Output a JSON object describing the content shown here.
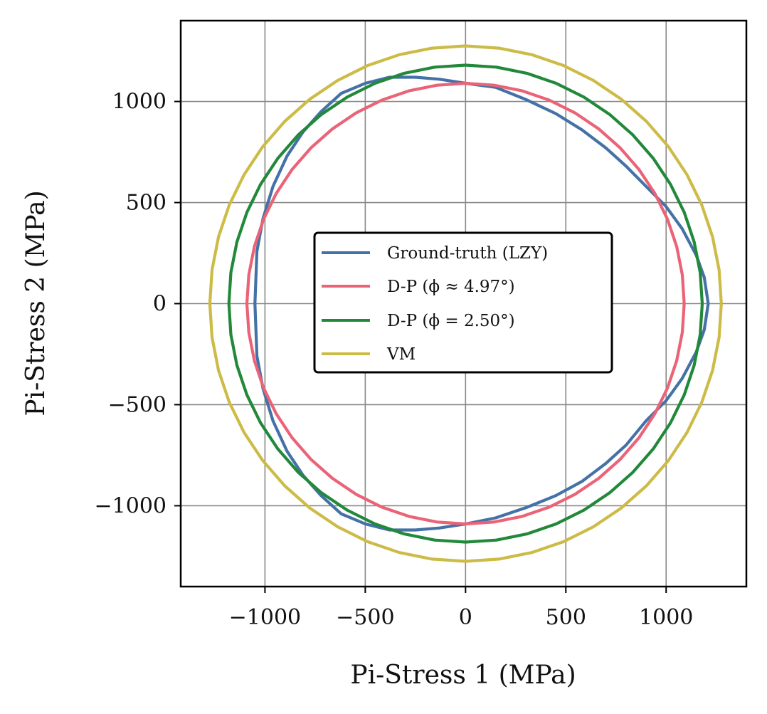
{
  "chart_data": {
    "type": "line",
    "title": "",
    "xlabel": "Pi-Stress 1 (MPa)",
    "ylabel": "Pi-Stress 2 (MPa)",
    "xlim": [
      -1420,
      1400
    ],
    "ylim": [
      -1400,
      1400
    ],
    "xticks": [
      -1000,
      -500,
      0,
      500,
      1000
    ],
    "yticks": [
      -1000,
      -500,
      0,
      500,
      1000
    ],
    "xtick_labels": [
      "−1000",
      "−500",
      "0",
      "500",
      "1000"
    ],
    "ytick_labels": [
      "−1000",
      "−500",
      "0",
      "500",
      "1000"
    ],
    "grid": true,
    "legend_position": "center",
    "series": [
      {
        "name": "Ground-truth (LZY)",
        "color": "#4472a6",
        "points": [
          [
            1210,
            0
          ],
          [
            1190,
            130
          ],
          [
            1150,
            240
          ],
          [
            1080,
            370
          ],
          [
            1000,
            480
          ],
          [
            900,
            580
          ],
          [
            800,
            680
          ],
          [
            700,
            770
          ],
          [
            580,
            860
          ],
          [
            450,
            940
          ],
          [
            300,
            1010
          ],
          [
            150,
            1070
          ],
          [
            0,
            1090
          ],
          [
            -130,
            1110
          ],
          [
            -250,
            1120
          ],
          [
            -380,
            1120
          ],
          [
            -500,
            1090
          ],
          [
            -620,
            1040
          ],
          [
            -720,
            950
          ],
          [
            -810,
            850
          ],
          [
            -890,
            730
          ],
          [
            -960,
            580
          ],
          [
            -1010,
            420
          ],
          [
            -1040,
            260
          ],
          [
            -1050,
            0
          ],
          [
            -1040,
            -260
          ],
          [
            -1010,
            -420
          ],
          [
            -960,
            -580
          ],
          [
            -890,
            -730
          ],
          [
            -810,
            -850
          ],
          [
            -720,
            -950
          ],
          [
            -620,
            -1040
          ],
          [
            -500,
            -1090
          ],
          [
            -380,
            -1120
          ],
          [
            -250,
            -1120
          ],
          [
            -130,
            -1110
          ],
          [
            0,
            -1090
          ],
          [
            150,
            -1060
          ],
          [
            300,
            -1010
          ],
          [
            450,
            -950
          ],
          [
            580,
            -880
          ],
          [
            700,
            -790
          ],
          [
            800,
            -700
          ],
          [
            900,
            -580
          ],
          [
            1000,
            -480
          ],
          [
            1080,
            -370
          ],
          [
            1150,
            -240
          ],
          [
            1190,
            -130
          ],
          [
            1210,
            0
          ]
        ]
      },
      {
        "name": "D-P (ϕ ≈ 4.97°)",
        "color": "#ea6377",
        "radius": 1090
      },
      {
        "name": "D-P (ϕ = 2.50°)",
        "color": "#22883a",
        "radius": 1180
      },
      {
        "name": "VM",
        "color": "#cdbb47",
        "radius": 1275
      }
    ]
  }
}
